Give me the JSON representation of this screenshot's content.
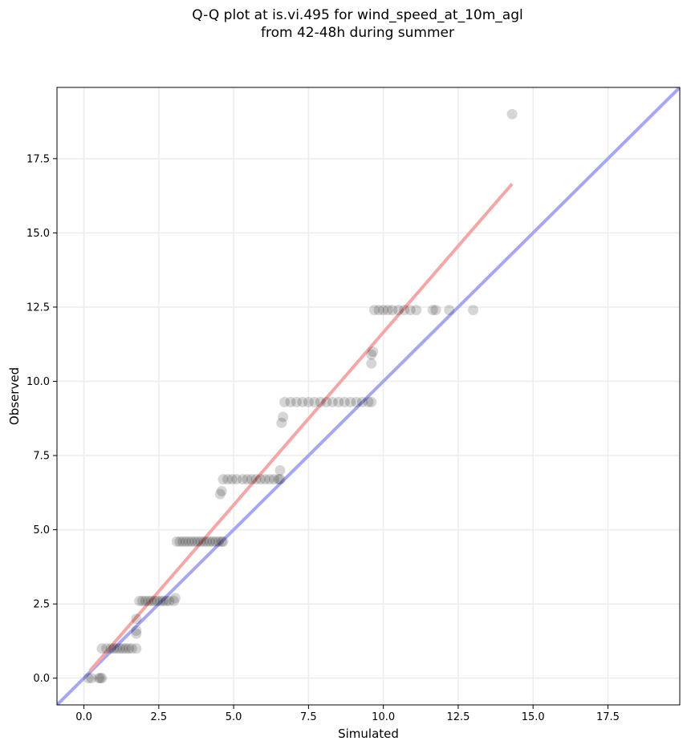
{
  "title_line1": "Q-Q plot at is.vi.495 for wind_speed_at_10m_agl",
  "title_line2": "from 42-48h during summer",
  "chart_data": {
    "type": "scatter",
    "title": "Q-Q plot at is.vi.495 for wind_speed_at_10m_agl\nfrom 42-48h during summer",
    "xlabel": "Simulated",
    "ylabel": "Observed",
    "xlim": [
      -0.9,
      19.9
    ],
    "ylim": [
      -0.9,
      19.9
    ],
    "xticks": [
      "0.0",
      "2.5",
      "5.0",
      "7.5",
      "10.0",
      "12.5",
      "15.0",
      "17.5"
    ],
    "yticks": [
      "0.0",
      "2.5",
      "5.0",
      "7.5",
      "10.0",
      "12.5",
      "15.0",
      "17.5"
    ],
    "grid": true,
    "points": [
      [
        0.15,
        0.0
      ],
      [
        0.25,
        0.0
      ],
      [
        0.5,
        0.0
      ],
      [
        0.55,
        0.0
      ],
      [
        0.6,
        0.0
      ],
      [
        0.6,
        1.0
      ],
      [
        0.75,
        1.0
      ],
      [
        0.9,
        1.0
      ],
      [
        1.0,
        1.0
      ],
      [
        1.1,
        1.0
      ],
      [
        1.2,
        1.0
      ],
      [
        1.3,
        1.0
      ],
      [
        1.4,
        1.0
      ],
      [
        1.5,
        1.0
      ],
      [
        1.6,
        1.0
      ],
      [
        1.75,
        1.0
      ],
      [
        1.75,
        1.5
      ],
      [
        1.75,
        1.6
      ],
      [
        1.75,
        2.0
      ],
      [
        1.85,
        2.6
      ],
      [
        1.95,
        2.6
      ],
      [
        2.05,
        2.6
      ],
      [
        2.15,
        2.6
      ],
      [
        2.25,
        2.6
      ],
      [
        2.35,
        2.6
      ],
      [
        2.45,
        2.6
      ],
      [
        2.55,
        2.6
      ],
      [
        2.65,
        2.6
      ],
      [
        2.75,
        2.6
      ],
      [
        2.85,
        2.6
      ],
      [
        3.0,
        2.6
      ],
      [
        3.05,
        2.7
      ],
      [
        3.1,
        4.6
      ],
      [
        3.2,
        4.6
      ],
      [
        3.3,
        4.6
      ],
      [
        3.4,
        4.6
      ],
      [
        3.5,
        4.6
      ],
      [
        3.6,
        4.6
      ],
      [
        3.7,
        4.6
      ],
      [
        3.8,
        4.6
      ],
      [
        3.9,
        4.6
      ],
      [
        4.0,
        4.6
      ],
      [
        4.1,
        4.6
      ],
      [
        4.2,
        4.6
      ],
      [
        4.3,
        4.6
      ],
      [
        4.4,
        4.6
      ],
      [
        4.5,
        4.6
      ],
      [
        4.6,
        4.6
      ],
      [
        4.65,
        4.6
      ],
      [
        4.55,
        6.2
      ],
      [
        4.6,
        6.3
      ],
      [
        4.65,
        6.7
      ],
      [
        4.8,
        6.7
      ],
      [
        4.95,
        6.7
      ],
      [
        5.1,
        6.7
      ],
      [
        5.3,
        6.7
      ],
      [
        5.45,
        6.7
      ],
      [
        5.6,
        6.7
      ],
      [
        5.75,
        6.7
      ],
      [
        5.9,
        6.7
      ],
      [
        6.05,
        6.7
      ],
      [
        6.2,
        6.7
      ],
      [
        6.35,
        6.7
      ],
      [
        6.5,
        6.7
      ],
      [
        6.55,
        6.7
      ],
      [
        6.55,
        7.0
      ],
      [
        6.6,
        8.6
      ],
      [
        6.65,
        8.8
      ],
      [
        6.7,
        9.3
      ],
      [
        6.9,
        9.3
      ],
      [
        7.1,
        9.3
      ],
      [
        7.3,
        9.3
      ],
      [
        7.5,
        9.3
      ],
      [
        7.7,
        9.3
      ],
      [
        7.9,
        9.3
      ],
      [
        8.1,
        9.3
      ],
      [
        8.3,
        9.3
      ],
      [
        8.5,
        9.3
      ],
      [
        8.7,
        9.3
      ],
      [
        8.9,
        9.3
      ],
      [
        9.1,
        9.3
      ],
      [
        9.3,
        9.3
      ],
      [
        9.5,
        9.3
      ],
      [
        9.6,
        9.3
      ],
      [
        9.6,
        10.6
      ],
      [
        9.6,
        10.9
      ],
      [
        9.65,
        11.0
      ],
      [
        9.7,
        12.4
      ],
      [
        9.85,
        12.4
      ],
      [
        10.0,
        12.4
      ],
      [
        10.15,
        12.4
      ],
      [
        10.3,
        12.4
      ],
      [
        10.5,
        12.4
      ],
      [
        10.7,
        12.4
      ],
      [
        10.9,
        12.4
      ],
      [
        11.1,
        12.4
      ],
      [
        11.65,
        12.4
      ],
      [
        11.75,
        12.4
      ],
      [
        12.2,
        12.4
      ],
      [
        13.0,
        12.4
      ],
      [
        14.3,
        19.0
      ]
    ],
    "reference_line": {
      "color": "#a6a6f5",
      "from": [
        -0.9,
        -0.9
      ],
      "to": [
        19.9,
        19.9
      ]
    },
    "fit_line": {
      "color": "#f5a6a6",
      "from": [
        0.2,
        0.25
      ],
      "to": [
        14.3,
        16.65
      ]
    },
    "point_color": "#000000"
  }
}
